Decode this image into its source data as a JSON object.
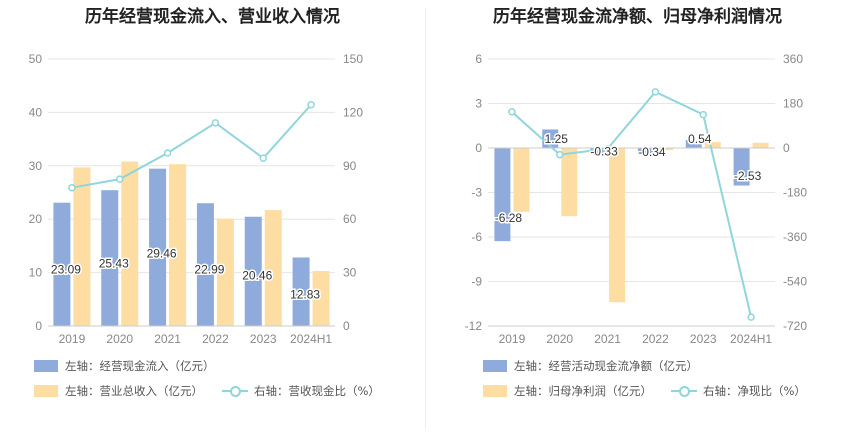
{
  "colors": {
    "blue": "#8eabdc",
    "orange": "#fddda2",
    "teal": "#8fd6dc",
    "grid": "#e6e6e6",
    "axis_text": "#888888",
    "label_text": "#333333"
  },
  "charts": [
    {
      "title": "历年经营现金流入、营业收入情况",
      "legend": {
        "bar1": "左轴：经营现金流入（亿元）",
        "bar2": "左轴：营业总收入（亿元）",
        "line": "右轴：营收现金比（%）"
      }
    },
    {
      "title": "历年经营现金流净额、归母净利润情况",
      "legend": {
        "bar1": "左轴：经营活动现金流净额（亿元）",
        "bar2": "左轴：归母净利润（亿元）",
        "line": "右轴：净现比（%）"
      }
    }
  ],
  "chart_data": [
    {
      "type": "bar",
      "categories": [
        "2019",
        "2020",
        "2021",
        "2022",
        "2023",
        "2024H1"
      ],
      "series": [
        {
          "name": "左轴：经营现金流入（亿元）",
          "axis": "left",
          "type": "bar",
          "values": [
            23.09,
            25.43,
            29.46,
            22.99,
            20.46,
            12.83
          ],
          "labels": [
            "23.09",
            "25.43",
            "29.46",
            "22.99",
            "20.46",
            "12.83"
          ]
        },
        {
          "name": "左轴：营业总收入（亿元）",
          "axis": "left",
          "type": "bar",
          "values": [
            29.7,
            30.8,
            30.3,
            20.1,
            21.7,
            10.3
          ]
        },
        {
          "name": "右轴：营收现金比（%）",
          "axis": "right",
          "type": "line",
          "values": [
            77.7,
            82.5,
            97.2,
            114.1,
            94.3,
            124.3
          ]
        }
      ],
      "y_left": {
        "min": 0,
        "max": 50,
        "ticks": [
          "0",
          "10",
          "20",
          "30",
          "40",
          "50"
        ]
      },
      "y_right": {
        "min": 0,
        "max": 150,
        "ticks": [
          "0",
          "30",
          "60",
          "90",
          "120",
          "150"
        ]
      },
      "grid": true,
      "legend_position": "bottom"
    },
    {
      "type": "bar",
      "categories": [
        "2019",
        "2020",
        "2021",
        "2022",
        "2023",
        "2024H1"
      ],
      "series": [
        {
          "name": "左轴：经营活动现金流净额（亿元）",
          "axis": "left",
          "type": "bar",
          "values": [
            -6.28,
            1.25,
            -0.33,
            -0.34,
            0.54,
            -2.53
          ],
          "labels": [
            "-6.28",
            "1.25",
            "-0.33",
            "-0.34",
            "0.54",
            "-2.53"
          ]
        },
        {
          "name": "左轴：归母净利润（亿元）",
          "axis": "left",
          "type": "bar",
          "values": [
            -4.3,
            -4.6,
            -10.4,
            -0.15,
            0.4,
            0.35
          ]
        },
        {
          "name": "右轴：净现比（%）",
          "axis": "right",
          "type": "line",
          "values": [
            146,
            -27,
            -3,
            227,
            135,
            -684
          ]
        }
      ],
      "y_left": {
        "min": -12,
        "max": 6,
        "ticks": [
          "-12",
          "-9",
          "-6",
          "-3",
          "0",
          "3",
          "6"
        ]
      },
      "y_right": {
        "min": -720,
        "max": 360,
        "ticks": [
          "-720",
          "-540",
          "-360",
          "-180",
          "0",
          "180",
          "360"
        ]
      },
      "grid": true,
      "legend_position": "bottom"
    }
  ]
}
